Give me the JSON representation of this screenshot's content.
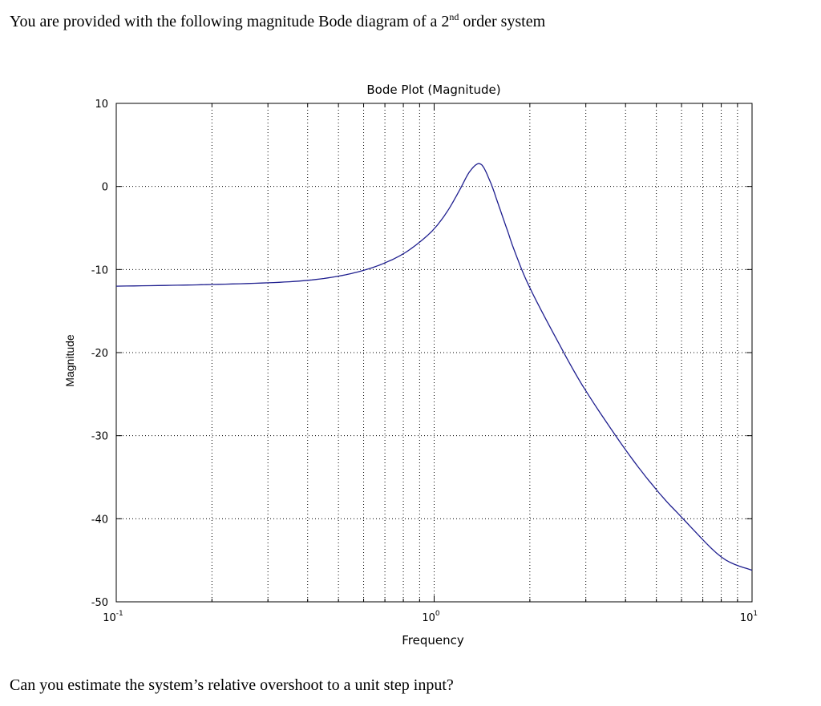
{
  "question": {
    "intro_before": "You are provided with the following magnitude Bode diagram of a 2",
    "intro_sup": "nd",
    "intro_after": " order system",
    "outro": "Can you estimate the system’s relative overshoot to a unit step input?"
  },
  "chart_data": {
    "type": "line",
    "title": "Bode Plot (Magnitude)",
    "xlabel": "Frequency",
    "ylabel": "Magnitude",
    "x_scale": "log",
    "xlim": [
      0.1,
      10
    ],
    "ylim": [
      -50,
      10
    ],
    "x_ticks": [
      {
        "value": 0.1,
        "base": "10",
        "exp": "-1"
      },
      {
        "value": 1,
        "base": "10",
        "exp": "0"
      },
      {
        "value": 10,
        "base": "10",
        "exp": "1"
      }
    ],
    "y_ticks": [
      {
        "value": 10,
        "label": "10"
      },
      {
        "value": 0,
        "label": "0"
      },
      {
        "value": -10,
        "label": "-10"
      },
      {
        "value": -20,
        "label": "-20"
      },
      {
        "value": -30,
        "label": "-30"
      },
      {
        "value": -40,
        "label": "-40"
      },
      {
        "value": -50,
        "label": "-50"
      }
    ],
    "grid": true,
    "line_color": "#1f1f8f",
    "series": [
      {
        "x": [
          0.1,
          0.15,
          0.2,
          0.3,
          0.4,
          0.5,
          0.6,
          0.7,
          0.8,
          0.9,
          1.0,
          1.1,
          1.2,
          1.3,
          1.4,
          1.5,
          1.6,
          1.7,
          1.8,
          2.0,
          2.5,
          3.0,
          4.0,
          5.0,
          6.0,
          8.0,
          10.0
        ],
        "y": [
          -12.0,
          -11.9,
          -11.8,
          -11.6,
          -11.3,
          -10.8,
          -10.1,
          -9.2,
          -8.1,
          -6.7,
          -5.1,
          -3.0,
          -0.5,
          1.9,
          2.7,
          0.6,
          -2.4,
          -5.3,
          -8.0,
          -12.2,
          -19.3,
          -24.6,
          -31.7,
          -36.5,
          -39.8,
          -44.6,
          -46.2
        ]
      }
    ]
  }
}
